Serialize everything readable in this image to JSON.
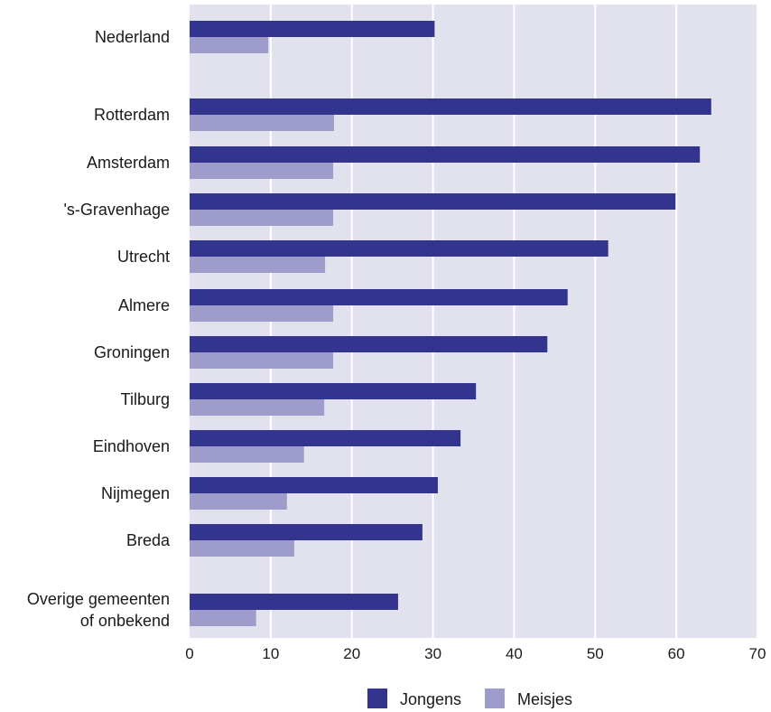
{
  "chart_data": {
    "type": "bar",
    "orientation": "horizontal",
    "categories": [
      "Nederland",
      "Rotterdam",
      "Amsterdam",
      "'s-Gravenhage",
      "Utrecht",
      "Almere",
      "Groningen",
      "Tilburg",
      "Eindhoven",
      "Nijmegen",
      "Breda",
      "Overige gemeenten of onbekend"
    ],
    "category_lines": [
      [
        "Nederland"
      ],
      [
        "Rotterdam"
      ],
      [
        "Amsterdam"
      ],
      [
        "'s-Gravenhage"
      ],
      [
        "Utrecht"
      ],
      [
        "Almere"
      ],
      [
        "Groningen"
      ],
      [
        "Tilburg"
      ],
      [
        "Eindhoven"
      ],
      [
        "Nijmegen"
      ],
      [
        "Breda"
      ],
      [
        "Overige gemeenten",
        "of onbekend"
      ]
    ],
    "series": [
      {
        "name": "Jongens",
        "color": "#33348e",
        "values": [
          30.2,
          64.3,
          62.9,
          59.9,
          51.6,
          46.6,
          44.1,
          35.3,
          33.4,
          30.6,
          28.7,
          25.7
        ]
      },
      {
        "name": "Meisjes",
        "color": "#9d9ccb",
        "values": [
          9.7,
          17.8,
          17.7,
          17.7,
          16.7,
          17.7,
          17.7,
          16.6,
          14.1,
          12.0,
          12.9,
          8.2
        ]
      }
    ],
    "xlim": [
      0,
      70
    ],
    "xticks": [
      0,
      10,
      20,
      30,
      40,
      50,
      60,
      70
    ],
    "xticklabels": [
      "0",
      "10",
      "20",
      "30",
      "40",
      "50",
      "60",
      "70"
    ],
    "title": "",
    "xlabel": "",
    "ylabel": "",
    "grid": "vertical",
    "legend_position": "bottom-center",
    "plot_background": "#e2e1ee",
    "gridline_color": "#ffffff"
  }
}
